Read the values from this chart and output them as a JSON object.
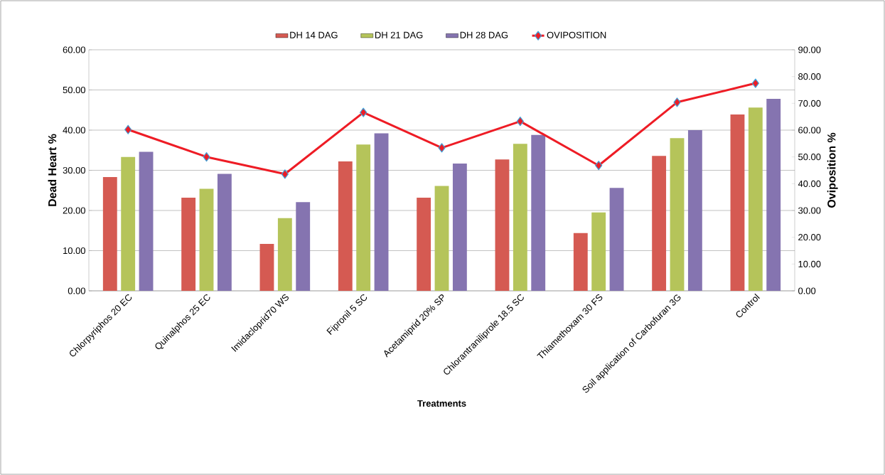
{
  "chart_data": {
    "type": "bar",
    "xlabel": "Treatments",
    "ylabel": "Dead Heart %",
    "y2label": "Oviposition %",
    "categories": [
      "Chlorpyriphos 20 EC",
      "Quinalphos 25 EC",
      "Imidacloprid70 WS",
      "Fipronil 5 SC",
      "Acetamiprid  20% SP",
      "Chlorantraniliprole  18.5 SC",
      "Thiamethoxam 30 FS",
      "Soil application of Carbofuran 3G",
      "Control"
    ],
    "series": [
      {
        "name": "DH 14 DAG",
        "color": "#d55a52",
        "values": [
          28.3,
          23.2,
          11.7,
          32.2,
          23.2,
          32.7,
          14.4,
          33.6,
          43.9
        ]
      },
      {
        "name": "DH 21 DAG",
        "color": "#b5c45a",
        "values": [
          33.3,
          25.4,
          18.1,
          36.4,
          26.1,
          36.6,
          19.5,
          38.0,
          45.6
        ]
      },
      {
        "name": "DH 28 DAG",
        "color": "#8574b0",
        "values": [
          34.6,
          29.1,
          22.1,
          39.2,
          31.7,
          38.8,
          25.6,
          40.0,
          47.8
        ]
      },
      {
        "name": "OVIPOSITION",
        "type": "line",
        "axis": "y2",
        "color": "#ee1c25",
        "marker": "diamond",
        "values": [
          60.2,
          50.0,
          43.6,
          66.6,
          53.4,
          63.3,
          46.8,
          70.4,
          77.5
        ]
      }
    ],
    "ylim": [
      0,
      60
    ],
    "yticks": [
      {
        "value": 0,
        "label": "0.00"
      },
      {
        "value": 10,
        "label": "10.00"
      },
      {
        "value": 20,
        "label": "20.00"
      },
      {
        "value": 30,
        "label": "30.00"
      },
      {
        "value": 40,
        "label": "40.00"
      },
      {
        "value": 50,
        "label": "50.00"
      },
      {
        "value": 60,
        "label": "60.00"
      }
    ],
    "y2lim": [
      0,
      90
    ],
    "y2ticks": [
      {
        "value": 0,
        "label": "0.00"
      },
      {
        "value": 10,
        "label": "10.00"
      },
      {
        "value": 20,
        "label": "20.00"
      },
      {
        "value": 30,
        "label": "30.00"
      },
      {
        "value": 40,
        "label": "40.00"
      },
      {
        "value": 50,
        "label": "50.00"
      },
      {
        "value": 60,
        "label": "60.00"
      },
      {
        "value": 70,
        "label": "70.00"
      },
      {
        "value": 80,
        "label": "80.00"
      },
      {
        "value": 90,
        "label": "90.00"
      }
    ],
    "grid": "y",
    "legend": "top"
  }
}
